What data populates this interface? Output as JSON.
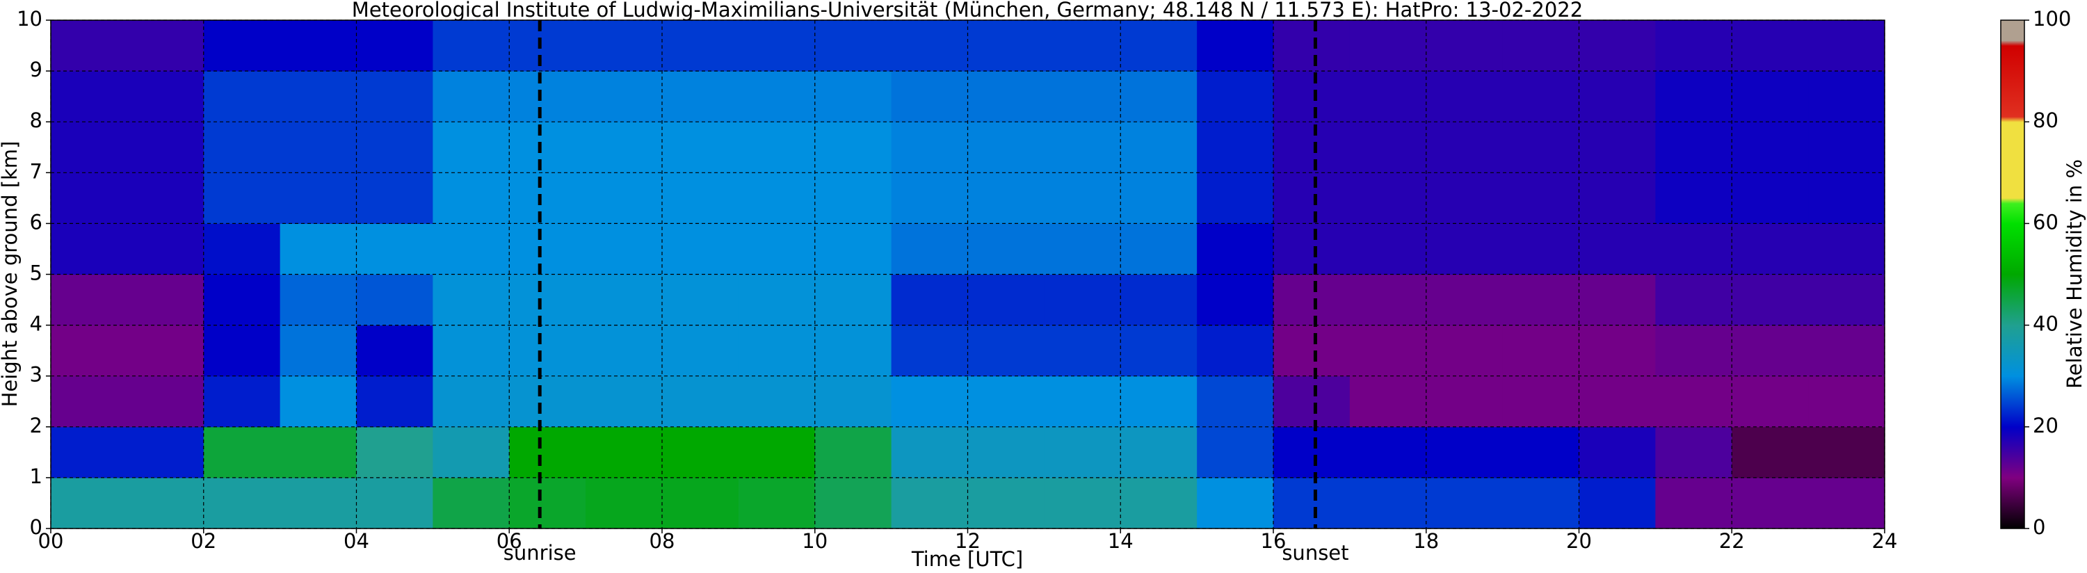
{
  "chart_data": {
    "type": "heatmap",
    "title": "Meteorological Institute of Ludwig-Maximilians-Universität (München, Germany; 48.148 N / 11.573 E):    HatPro: 13-02-2022",
    "x_label": "Time [UTC]",
    "y_label": "Height above ground [km]",
    "colorbar_label": "Relative Humidity in %",
    "x": [
      0.5,
      1.5,
      2.5,
      3.5,
      4.5,
      5.5,
      6.5,
      7.5,
      8.5,
      9.5,
      10.5,
      11.5,
      12.5,
      13.5,
      14.5,
      15.5,
      16.5,
      17.5,
      18.5,
      19.5,
      20.5,
      21.5,
      22.5,
      23.5
    ],
    "y": [
      0.5,
      1.5,
      2.5,
      3.5,
      4.5,
      5.5,
      6.5,
      7.5,
      8.5,
      9.5
    ],
    "z": [
      [
        38,
        38,
        38,
        38,
        38,
        45,
        47,
        48,
        48,
        47,
        44,
        38,
        38,
        38,
        38,
        30,
        24,
        24,
        24,
        24,
        22,
        12,
        12,
        12
      ],
      [
        22,
        22,
        46,
        46,
        40,
        36,
        50,
        50,
        50,
        50,
        45,
        34,
        34,
        34,
        34,
        25,
        20,
        20,
        20,
        20,
        18,
        14,
        6,
        6
      ],
      [
        12,
        12,
        22,
        30,
        22,
        32,
        32,
        32,
        32,
        32,
        32,
        30,
        30,
        30,
        30,
        25,
        14,
        11,
        11,
        11,
        11,
        11,
        11,
        11
      ],
      [
        11,
        11,
        20,
        28,
        20,
        31,
        31,
        31,
        31,
        31,
        31,
        24,
        24,
        24,
        24,
        22,
        11,
        11,
        11,
        11,
        11,
        12,
        12,
        12
      ],
      [
        12,
        12,
        20,
        27,
        26,
        31,
        31,
        31,
        31,
        31,
        31,
        23,
        23,
        23,
        23,
        20,
        12,
        12,
        12,
        12,
        12,
        15,
        15,
        15
      ],
      [
        18,
        18,
        21,
        30,
        30,
        30,
        30,
        30,
        30,
        30,
        30,
        28,
        28,
        28,
        28,
        20,
        17,
        17,
        17,
        17,
        17,
        17,
        17,
        17
      ],
      [
        18,
        18,
        24,
        24,
        24,
        30,
        30,
        30,
        30,
        30,
        30,
        29,
        29,
        29,
        29,
        22,
        17,
        17,
        17,
        17,
        17,
        19,
        19,
        19
      ],
      [
        18,
        18,
        24,
        24,
        24,
        30,
        30,
        30,
        30,
        30,
        30,
        29,
        29,
        29,
        29,
        22,
        17,
        17,
        17,
        17,
        17,
        19,
        19,
        19
      ],
      [
        18,
        18,
        24,
        24,
        24,
        29,
        29,
        29,
        29,
        29,
        29,
        28,
        28,
        28,
        28,
        22,
        17,
        17,
        17,
        17,
        17,
        19,
        19,
        19
      ],
      [
        16,
        16,
        20,
        20,
        20,
        24,
        24,
        24,
        24,
        24,
        24,
        24,
        24,
        24,
        24,
        20,
        16,
        16,
        16,
        16,
        16,
        17,
        17,
        17
      ]
    ],
    "xlim": [
      0,
      24
    ],
    "ylim": [
      0,
      10
    ],
    "xticks": [
      {
        "value": 0,
        "label": "00"
      },
      {
        "value": 2,
        "label": "02"
      },
      {
        "value": 4,
        "label": "04"
      },
      {
        "value": 6,
        "label": "06"
      },
      {
        "value": 8,
        "label": "08"
      },
      10,
      12,
      14,
      16,
      18,
      20,
      22,
      24
    ],
    "yticks": [
      0,
      1,
      2,
      3,
      4,
      5,
      6,
      7,
      8,
      9,
      10
    ],
    "grid": true,
    "vlines": [
      {
        "x": 6.4,
        "label": "sunrise"
      },
      {
        "x": 16.55,
        "label": "sunset"
      }
    ],
    "clim": [
      0,
      100
    ],
    "cticks": [
      0,
      20,
      40,
      60,
      80,
      100
    ],
    "colorscale": [
      [
        0,
        "#000000"
      ],
      [
        10,
        "#800080"
      ],
      [
        20,
        "#0000c8"
      ],
      [
        30,
        "#0090e0"
      ],
      [
        40,
        "#20a090"
      ],
      [
        50,
        "#00a800"
      ],
      [
        60,
        "#00e000"
      ],
      [
        64,
        "#40f020"
      ],
      [
        65,
        "#f0e040"
      ],
      [
        80,
        "#f0e040"
      ],
      [
        81,
        "#e03020"
      ],
      [
        95,
        "#d00000"
      ],
      [
        96,
        "#b0a090"
      ],
      [
        100,
        "#b0a090"
      ]
    ]
  }
}
